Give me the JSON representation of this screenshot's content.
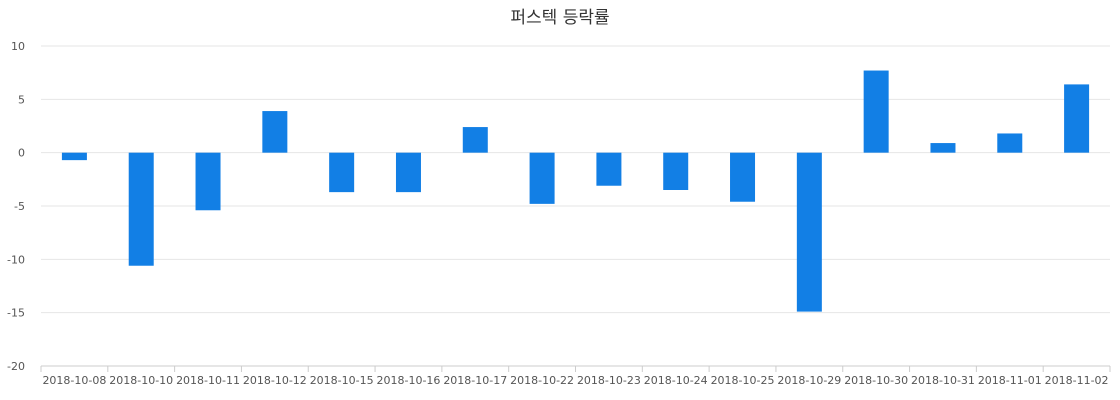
{
  "chart_data": {
    "type": "bar",
    "title": "퍼스텍 등락률",
    "xlabel": "",
    "ylabel": "",
    "ylim": [
      -20,
      10
    ],
    "yticks": [
      10,
      5,
      0,
      -5,
      -10,
      -15,
      -20
    ],
    "grid": true,
    "legend": "none",
    "categories": [
      "2018-10-08",
      "2018-10-10",
      "2018-10-11",
      "2018-10-12",
      "2018-10-15",
      "2018-10-16",
      "2018-10-17",
      "2018-10-22",
      "2018-10-23",
      "2018-10-24",
      "2018-10-25",
      "2018-10-29",
      "2018-10-30",
      "2018-10-31",
      "2018-11-01",
      "2018-11-02"
    ],
    "values": [
      -0.7,
      -10.6,
      -5.4,
      3.9,
      -3.7,
      -3.7,
      2.4,
      -4.8,
      -3.1,
      -3.5,
      -4.6,
      -14.9,
      7.7,
      0.9,
      1.8,
      6.4
    ],
    "bar_color": "#127fe5"
  }
}
